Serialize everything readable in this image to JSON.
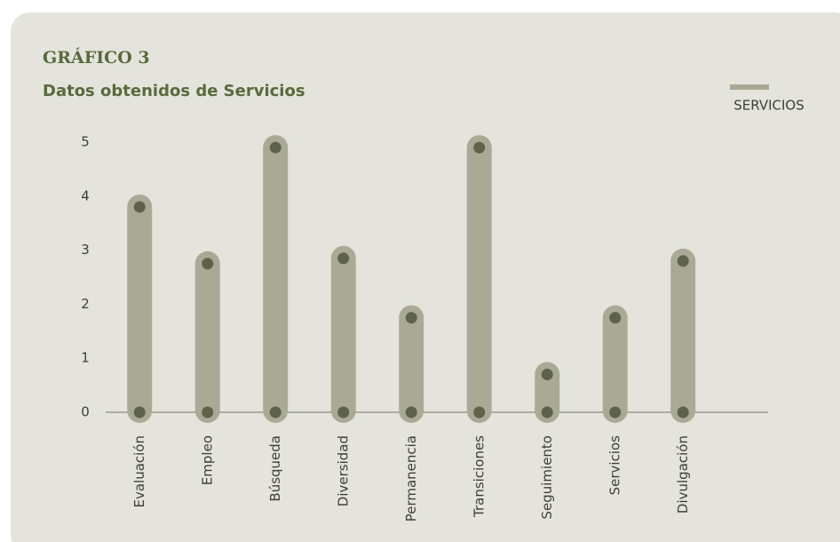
{
  "chart_data": {
    "type": "bar",
    "title": "GRÁFICO 3",
    "subtitle": "Datos obtenidos de Servicios",
    "categories": [
      "Evaluación",
      "Empleo",
      "Búsqueda",
      "Diversidad",
      "Permanencia",
      "Transiciones",
      "Seguimiento",
      "Servicios",
      "Divulgación"
    ],
    "series": [
      {
        "name": "SERVICIOS",
        "color": "#a9a995",
        "values": [
          3.8,
          2.75,
          4.9,
          2.85,
          1.75,
          4.9,
          0.7,
          1.75,
          2.8
        ]
      }
    ],
    "ylim": [
      0,
      5
    ],
    "yticks": [
      0,
      1,
      2,
      3,
      4,
      5
    ],
    "grid": false,
    "legend": "top-right"
  }
}
